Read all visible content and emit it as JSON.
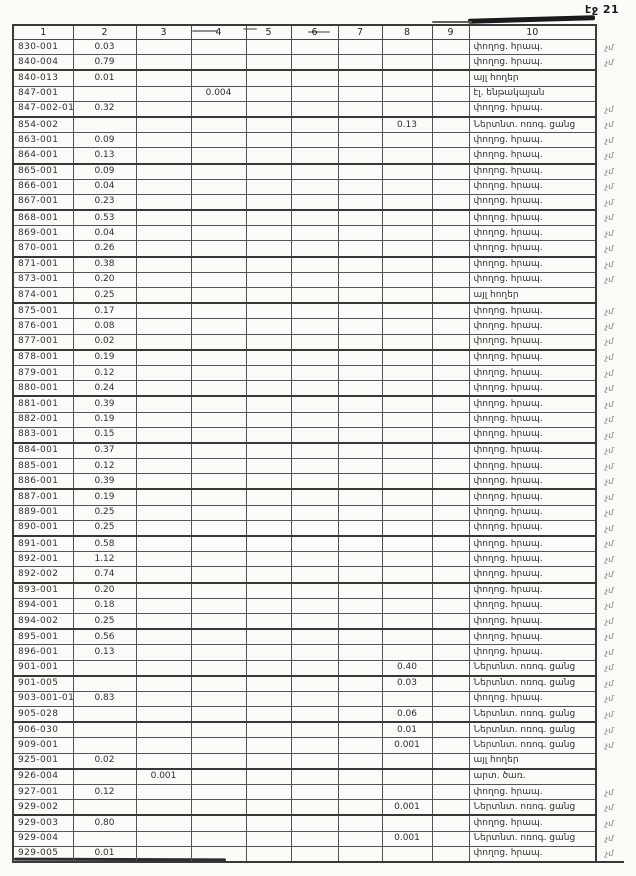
{
  "page": {
    "label": "էջ 21"
  },
  "table": {
    "headers": [
      "1",
      "2",
      "3",
      "4",
      "5",
      "6",
      "7",
      "8",
      "9",
      "10"
    ],
    "margin_mark": "չմ",
    "rows": [
      {
        "code": "830-001",
        "vals": {
          "2": "0.03"
        },
        "use": "փողոց. հրապ.",
        "mark": true
      },
      {
        "code": "840-004",
        "vals": {
          "2": "0.79"
        },
        "use": "փողոց. հրապ.",
        "mark": true
      },
      {
        "code": "840-013",
        "vals": {
          "2": "0.01"
        },
        "use": "այլ հողեր",
        "mark": false
      },
      {
        "code": "847-001",
        "vals": {
          "4": "0.004"
        },
        "use": "էլ. ենթակայան",
        "mark": false
      },
      {
        "code": "847-002-01",
        "vals": {
          "2": "0.32"
        },
        "use": "փողոց. հրապ.",
        "mark": true
      },
      {
        "code": "854-002",
        "vals": {
          "8": "0.13"
        },
        "use": "Ներտնտ. ոռոգ. ցանց",
        "mark": true
      },
      {
        "code": "863-001",
        "vals": {
          "2": "0.09"
        },
        "use": "փողոց. հրապ.",
        "mark": true
      },
      {
        "code": "864-001",
        "vals": {
          "2": "0.13"
        },
        "use": "փողոց. հրապ.",
        "mark": true
      },
      {
        "code": "865-001",
        "vals": {
          "2": "0.09"
        },
        "use": "փողոց. հրապ.",
        "mark": true
      },
      {
        "code": "866-001",
        "vals": {
          "2": "0.04"
        },
        "use": "փողոց. հրապ.",
        "mark": true
      },
      {
        "code": "867-001",
        "vals": {
          "2": "0.23"
        },
        "use": "փողոց. հրապ.",
        "mark": true
      },
      {
        "code": "868-001",
        "vals": {
          "2": "0.53"
        },
        "use": "փողոց. հրապ.",
        "mark": true
      },
      {
        "code": "869-001",
        "vals": {
          "2": "0.04"
        },
        "use": "փողոց. հրապ.",
        "mark": true
      },
      {
        "code": "870-001",
        "vals": {
          "2": "0.26"
        },
        "use": "փողոց. հրապ.",
        "mark": true
      },
      {
        "code": "871-001",
        "vals": {
          "2": "0.38"
        },
        "use": "փողոց. հրապ.",
        "mark": true
      },
      {
        "code": "873-001",
        "vals": {
          "2": "0.20"
        },
        "use": "փողոց. հրապ.",
        "mark": true
      },
      {
        "code": "874-001",
        "vals": {
          "2": "0.25"
        },
        "use": "այլ հողեր",
        "mark": false
      },
      {
        "code": "875-001",
        "vals": {
          "2": "0.17"
        },
        "use": "փողոց. հրապ.",
        "mark": true
      },
      {
        "code": "876-001",
        "vals": {
          "2": "0.08"
        },
        "use": "փողոց. հրապ.",
        "mark": true
      },
      {
        "code": "877-001",
        "vals": {
          "2": "0.02"
        },
        "use": "փողոց. հրապ.",
        "mark": true
      },
      {
        "code": "878-001",
        "vals": {
          "2": "0.19"
        },
        "use": "փողոց. հրապ.",
        "mark": true
      },
      {
        "code": "879-001",
        "vals": {
          "2": "0.12"
        },
        "use": "փողոց. հրապ.",
        "mark": true
      },
      {
        "code": "880-001",
        "vals": {
          "2": "0.24"
        },
        "use": "փողոց. հրապ.",
        "mark": true
      },
      {
        "code": "881-001",
        "vals": {
          "2": "0.39"
        },
        "use": "փողոց. հրապ.",
        "mark": true
      },
      {
        "code": "882-001",
        "vals": {
          "2": "0.19"
        },
        "use": "փողոց. հրապ.",
        "mark": true
      },
      {
        "code": "883-001",
        "vals": {
          "2": "0.15"
        },
        "use": "փողոց. հրապ.",
        "mark": true
      },
      {
        "code": "884-001",
        "vals": {
          "2": "0.37"
        },
        "use": "փողոց. հրապ.",
        "mark": true
      },
      {
        "code": "885-001",
        "vals": {
          "2": "0.12"
        },
        "use": "փողոց. հրապ.",
        "mark": true
      },
      {
        "code": "886-001",
        "vals": {
          "2": "0.39"
        },
        "use": "փողոց. հրապ.",
        "mark": true
      },
      {
        "code": "887-001",
        "vals": {
          "2": "0.19"
        },
        "use": "փողոց. հրապ.",
        "mark": true
      },
      {
        "code": "889-001",
        "vals": {
          "2": "0.25"
        },
        "use": "փողոց. հրապ.",
        "mark": true
      },
      {
        "code": "890-001",
        "vals": {
          "2": "0.25"
        },
        "use": "փողոց. հրապ.",
        "mark": true
      },
      {
        "code": "891-001",
        "vals": {
          "2": "0.58"
        },
        "use": "փողոց. հրապ.",
        "mark": true
      },
      {
        "code": "892-001",
        "vals": {
          "2": "1.12"
        },
        "use": "փողոց. հրապ.",
        "mark": true
      },
      {
        "code": "892-002",
        "vals": {
          "2": "0.74"
        },
        "use": "փողոց. հրապ.",
        "mark": true
      },
      {
        "code": "893-001",
        "vals": {
          "2": "0.20"
        },
        "use": "փողոց. հրապ.",
        "mark": true
      },
      {
        "code": "894-001",
        "vals": {
          "2": "0.18"
        },
        "use": "փողոց. հրապ.",
        "mark": true
      },
      {
        "code": "894-002",
        "vals": {
          "2": "0.25"
        },
        "use": "փողոց. հրապ.",
        "mark": true
      },
      {
        "code": "895-001",
        "vals": {
          "2": "0.56"
        },
        "use": "փողոց. հրապ.",
        "mark": true
      },
      {
        "code": "896-001",
        "vals": {
          "2": "0.13"
        },
        "use": "փողոց. հրապ.",
        "mark": true
      },
      {
        "code": "901-001",
        "vals": {
          "8": "0.40"
        },
        "use": "Ներտնտ. ոռոգ. ցանց",
        "mark": true
      },
      {
        "code": "901-005",
        "vals": {
          "8": "0.03"
        },
        "use": "Ներտնտ. ոռոգ. ցանց",
        "mark": true
      },
      {
        "code": "903-001-01",
        "vals": {
          "2": "0.83"
        },
        "use": "փողոց. հրապ.",
        "mark": true
      },
      {
        "code": "905-028",
        "vals": {
          "8": "0.06"
        },
        "use": "Ներտնտ. ոռոգ. ցանց",
        "mark": true
      },
      {
        "code": "906-030",
        "vals": {
          "8": "0.01"
        },
        "use": "Ներտնտ. ոռոգ. ցանց",
        "mark": true
      },
      {
        "code": "909-001",
        "vals": {
          "8": "0.001"
        },
        "use": "Ներտնտ. ոռոգ. ցանց",
        "mark": true
      },
      {
        "code": "925-001",
        "vals": {
          "2": "0.02"
        },
        "use": "այլ հողեր",
        "mark": false
      },
      {
        "code": "926-004",
        "vals": {
          "3": "0.001"
        },
        "use": "արտ. ծառ.",
        "mark": false
      },
      {
        "code": "927-001",
        "vals": {
          "2": "0.12"
        },
        "use": "փողոց. հրապ.",
        "mark": true
      },
      {
        "code": "929-002",
        "vals": {
          "8": "0.001"
        },
        "use": "Ներտնտ. ոռոգ. ցանց",
        "mark": true
      },
      {
        "code": "929-003",
        "vals": {
          "2": "0.80"
        },
        "use": "փողոց. հրապ.",
        "mark": true
      },
      {
        "code": "929-004",
        "vals": {
          "8": "0.001"
        },
        "use": "Ներտնտ. ոռոգ. ցանց",
        "mark": true
      },
      {
        "code": "929-005",
        "vals": {
          "2": "0.01"
        },
        "use": "փողոց. հրապ.",
        "mark": true
      }
    ]
  }
}
